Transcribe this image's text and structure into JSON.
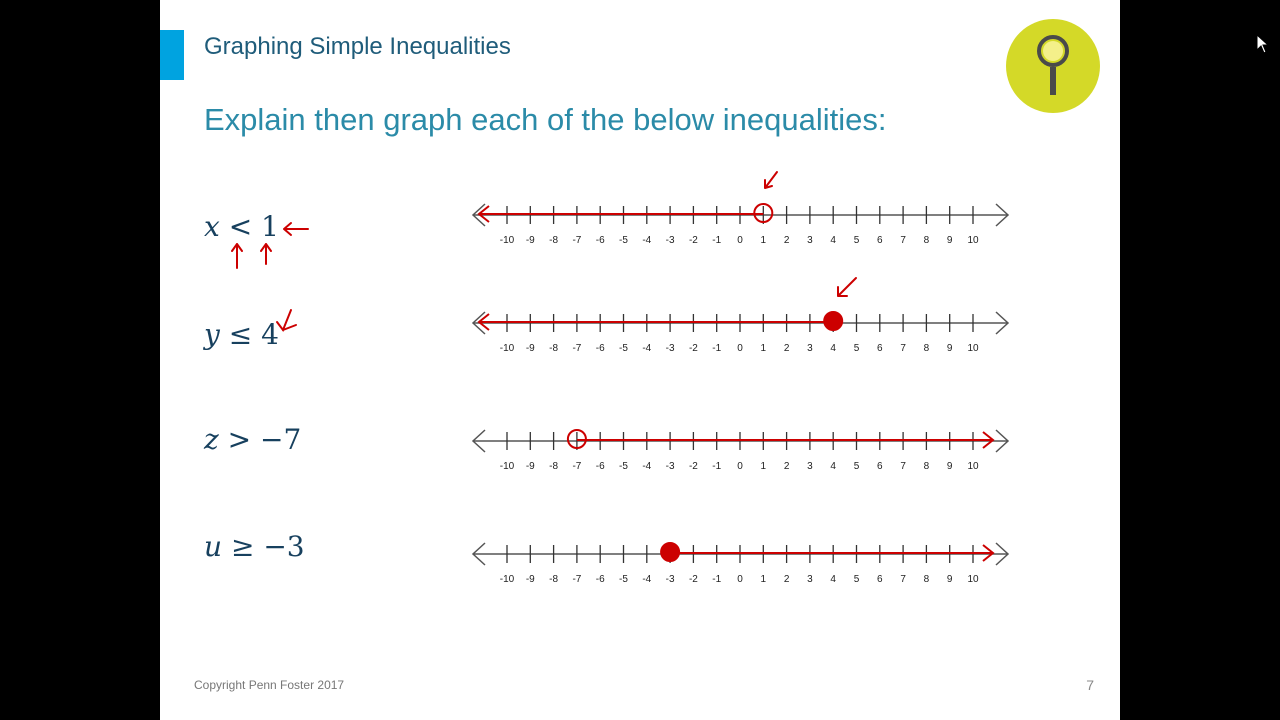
{
  "slide": {
    "title": "Graphing Simple Inequalities",
    "instruction": "Explain then graph each of the below inequalities:",
    "footer": "Copyright Penn Foster 2017",
    "page_number": "7",
    "logo_icon": "magnifying-glass-icon"
  },
  "colors": {
    "accent": "#00a3e0",
    "title": "#1f5c7a",
    "instruction": "#2b8ba8",
    "annotation": "#cc0000",
    "logo": "#d4d928"
  },
  "number_line": {
    "ticks": [
      "-10",
      "-9",
      "-8",
      "-7",
      "-6",
      "-5",
      "-4",
      "-3",
      "-2",
      "-1",
      "0",
      "1",
      "2",
      "3",
      "4",
      "5",
      "6",
      "7",
      "8",
      "9",
      "10"
    ]
  },
  "problems": [
    {
      "variable": "x",
      "operator": "<",
      "value": "1",
      "endpoint": 1,
      "closed": false,
      "direction": "left"
    },
    {
      "variable": "y",
      "operator": "≤",
      "value": "4",
      "endpoint": 4,
      "closed": true,
      "direction": "left"
    },
    {
      "variable": "z",
      "operator": ">",
      "value": "−7",
      "endpoint": -7,
      "closed": false,
      "direction": "right"
    },
    {
      "variable": "u",
      "operator": "≥",
      "value": "−3",
      "endpoint": -3,
      "closed": true,
      "direction": "right"
    }
  ]
}
